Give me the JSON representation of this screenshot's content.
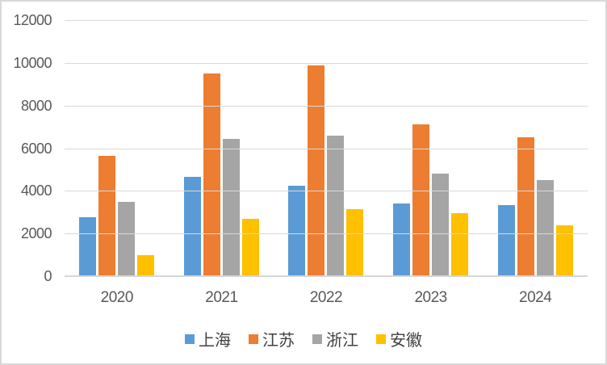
{
  "chart": {
    "styles": {
      "background": "#FFFFFF",
      "border_color": "#D9D9D9",
      "gridline_color": "#D9D9D9",
      "axis_line_color": "#D6D6D6",
      "tick_text_color": "#595959",
      "legend_text_color": "#404040"
    }
  },
  "chart_data": {
    "type": "bar",
    "title": "",
    "xlabel": "",
    "ylabel": "",
    "categories": [
      "2020",
      "2021",
      "2022",
      "2023",
      "2024"
    ],
    "series": [
      {
        "name": "上海",
        "color": "#5B9BD5",
        "values": [
          2750,
          4650,
          4250,
          3400,
          3350
        ]
      },
      {
        "name": "江苏",
        "color": "#ED7D31",
        "values": [
          5650,
          9500,
          9900,
          7100,
          6500
        ]
      },
      {
        "name": "浙江",
        "color": "#A5A5A5",
        "values": [
          3500,
          6450,
          6600,
          4800,
          4500
        ]
      },
      {
        "name": "安徽",
        "color": "#FFC000",
        "values": [
          1000,
          2700,
          3150,
          2950,
          2400
        ]
      }
    ],
    "ylim": [
      0,
      12000
    ],
    "ytick_interval": 2000,
    "yticks": [
      "12000",
      "10000",
      "8000",
      "6000",
      "4000",
      "2000",
      "0"
    ],
    "grid": true,
    "legend_position": "bottom"
  }
}
